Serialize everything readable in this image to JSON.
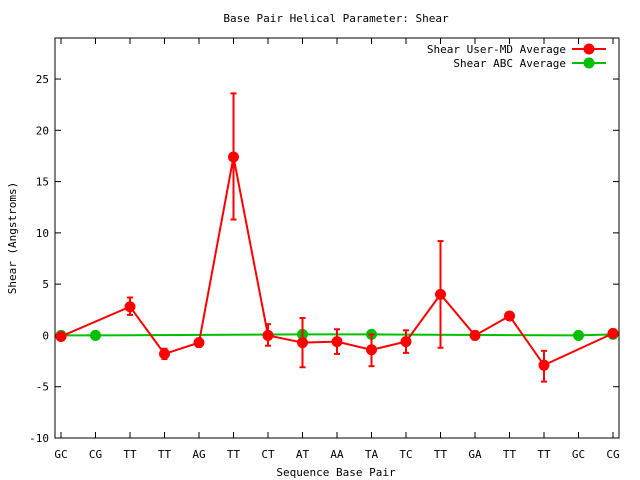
{
  "chart_data": {
    "type": "line",
    "title": "Base Pair Helical Parameter: Shear",
    "xlabel": "Sequence Base Pair",
    "ylabel": "Shear (Angstroms)",
    "ylim": [
      -10,
      29
    ],
    "yticks": [
      -10,
      -5,
      0,
      5,
      10,
      15,
      20,
      25
    ],
    "categories": [
      "GC",
      "CG",
      "TT",
      "TT",
      "AG",
      "TT",
      "CT",
      "AT",
      "AA",
      "TA",
      "TC",
      "TT",
      "GA",
      "TT",
      "TT",
      "GC",
      "CG"
    ],
    "legend_position": "top-right",
    "grid": false,
    "series": [
      {
        "name": "Shear User-MD Average",
        "color": "#ff0000",
        "values": [
          -0.1,
          null,
          2.8,
          -1.8,
          -0.7,
          17.4,
          0.0,
          -0.7,
          -0.6,
          -1.4,
          -0.6,
          4.0,
          0.0,
          1.9,
          -2.9,
          null,
          0.2
        ],
        "err_low": [
          null,
          null,
          2.0,
          -2.3,
          -1.1,
          11.3,
          -1.0,
          -3.1,
          -1.8,
          -3.0,
          -1.7,
          -1.2,
          -0.4,
          1.6,
          -4.5,
          null,
          null
        ],
        "err_high": [
          null,
          null,
          3.7,
          -1.3,
          -0.3,
          23.6,
          1.1,
          1.7,
          0.6,
          0.1,
          0.5,
          9.2,
          0.4,
          2.2,
          -1.5,
          null,
          null
        ]
      },
      {
        "name": "Shear ABC Average",
        "color": "#00c000",
        "values": [
          0.0,
          0.0,
          null,
          null,
          null,
          null,
          null,
          0.1,
          null,
          0.1,
          null,
          null,
          null,
          null,
          null,
          0.0,
          0.1
        ]
      }
    ]
  }
}
